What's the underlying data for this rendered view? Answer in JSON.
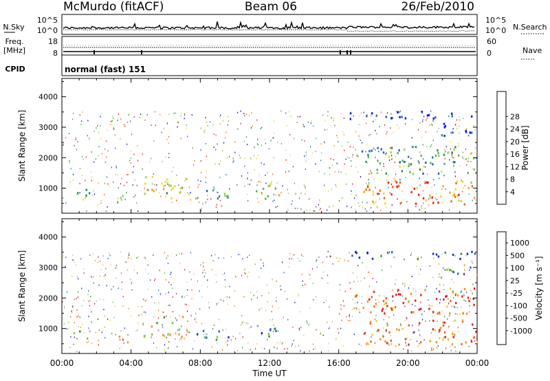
{
  "header": {
    "station": "McMurdo (fitACF)",
    "beam": "Beam 06",
    "date": "26/Feb/2010"
  },
  "noise_panel": {
    "left_label": "N.Sky",
    "right_label": "N.Search",
    "ticks_left": [
      "10^5",
      "10^0"
    ],
    "ticks_right": [
      "10^5",
      "10^0"
    ]
  },
  "freq_panel": {
    "left_label_1": "Freq.",
    "left_label_2": "[MHz]",
    "right_label": "Nave",
    "ticks_left": [
      "18",
      "8"
    ],
    "ticks_right": [
      "60",
      "0"
    ]
  },
  "cpid_panel": {
    "label": "CPID",
    "text": "normal (fast) 151"
  },
  "chart_data": [
    {
      "type": "heatmap",
      "name": "power",
      "ylabel": "Slant Range [km]",
      "xlabel": "Time UT",
      "ylim": [
        180,
        4600
      ],
      "y_ticks": [
        "1000",
        "2000",
        "3000",
        "4000"
      ],
      "x_ticks": [
        "00:00",
        "04:00",
        "08:00",
        "12:00",
        "16:00",
        "20:00",
        "00:00"
      ],
      "x_range_hours": [
        0,
        24
      ],
      "colorbar_label": "Power [dB]",
      "colorbar_ticks": [
        "4",
        "8",
        "12",
        "16",
        "20",
        "24",
        "28"
      ],
      "colors": [
        "#0a14f0",
        "#2060c8",
        "#1e8c64",
        "#5ab45a",
        "#96d24b",
        "#e6dc1e",
        "#f5a01e",
        "#f06414",
        "#e61e1e"
      ],
      "echo_regions": [
        {
          "t": [
            0.4,
            1.6
          ],
          "r": [
            650,
            1000
          ],
          "level": 0.45
        },
        {
          "t": [
            3.1,
            3.8
          ],
          "r": [
            560,
            900
          ],
          "level": 0.5
        },
        {
          "t": [
            4.6,
            7.4
          ],
          "r": [
            700,
            1450
          ],
          "level": 0.55
        },
        {
          "t": [
            7.5,
            9.7
          ],
          "r": [
            600,
            1000
          ],
          "level": 0.4
        },
        {
          "t": [
            11.2,
            12.6
          ],
          "r": [
            650,
            1200
          ],
          "level": 0.55
        },
        {
          "t": [
            17.4,
            24.0
          ],
          "r": [
            500,
            1300
          ],
          "level": 0.8
        },
        {
          "t": [
            16.9,
            23.8
          ],
          "r": [
            1500,
            2400
          ],
          "level": 0.35
        },
        {
          "t": [
            16.6,
            24.0
          ],
          "r": [
            3300,
            3550
          ],
          "level": 0.05
        },
        {
          "t": [
            21.8,
            23.8
          ],
          "r": [
            2700,
            3200
          ],
          "level": 0.1
        }
      ]
    },
    {
      "type": "heatmap",
      "name": "velocity",
      "ylabel": "Slant Range [km]",
      "xlabel": "Time UT",
      "ylim": [
        180,
        4600
      ],
      "y_ticks": [
        "1000",
        "2000",
        "3000",
        "4000"
      ],
      "x_ticks": [
        "00:00",
        "04:00",
        "08:00",
        "12:00",
        "16:00",
        "20:00",
        "00:00"
      ],
      "x_range_hours": [
        0,
        24
      ],
      "colorbar_label": "Velocity [m s⁻¹]",
      "colorbar_ticks": [
        "1000",
        "500",
        "100",
        "25",
        "-25",
        "-100",
        "-500",
        "-1000"
      ],
      "colors": [
        "#1428c8",
        "#2864c8",
        "#329632",
        "#78c850",
        "#bebebe",
        "#f0c850",
        "#f0961e",
        "#f06414",
        "#e61e1e"
      ],
      "echo_regions": [
        {
          "t": [
            0.4,
            1.6
          ],
          "r": [
            650,
            1000
          ],
          "level": 0.3
        },
        {
          "t": [
            3.1,
            3.8
          ],
          "r": [
            560,
            900
          ],
          "level": 0.75
        },
        {
          "t": [
            4.6,
            7.4
          ],
          "r": [
            700,
            1450
          ],
          "level": 0.5
        },
        {
          "t": [
            7.5,
            9.7
          ],
          "r": [
            600,
            1000
          ],
          "level": 0.3
        },
        {
          "t": [
            11.2,
            12.6
          ],
          "r": [
            650,
            1200
          ],
          "level": 0.3
        },
        {
          "t": [
            17.4,
            24.0
          ],
          "r": [
            500,
            1300
          ],
          "level": 0.8
        },
        {
          "t": [
            16.9,
            23.8
          ],
          "r": [
            1500,
            2400
          ],
          "level": 0.85
        },
        {
          "t": [
            16.6,
            24.0
          ],
          "r": [
            3300,
            3550
          ],
          "level": 0.1
        },
        {
          "t": [
            21.8,
            23.8
          ],
          "r": [
            2700,
            3200
          ],
          "level": 0.35
        }
      ]
    }
  ]
}
